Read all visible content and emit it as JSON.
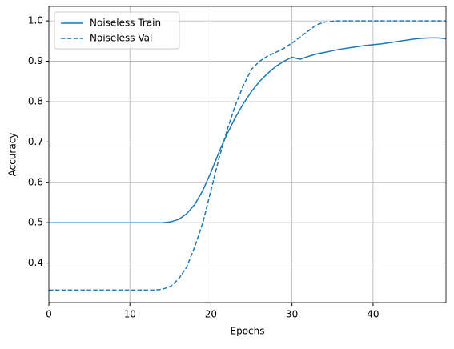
{
  "chart_data": {
    "type": "line",
    "x_label": "Epochs",
    "y_label": "Accuracy",
    "x": [
      0,
      1,
      2,
      3,
      4,
      5,
      6,
      7,
      8,
      9,
      10,
      11,
      12,
      13,
      14,
      15,
      16,
      17,
      18,
      19,
      20,
      21,
      22,
      23,
      24,
      25,
      26,
      27,
      28,
      29,
      30,
      31,
      32,
      33,
      34,
      35,
      36,
      37,
      38,
      39,
      40,
      41,
      42,
      43,
      44,
      45,
      46,
      47,
      48,
      49
    ],
    "series": [
      {
        "name": "Noiseless Train",
        "color": "#1f77b4",
        "linestyle": "solid",
        "values": [
          0.5,
          0.5,
          0.5,
          0.5,
          0.5,
          0.5,
          0.5,
          0.5,
          0.5,
          0.5,
          0.5,
          0.5,
          0.5,
          0.5,
          0.5,
          0.502,
          0.508,
          0.522,
          0.545,
          0.58,
          0.625,
          0.675,
          0.72,
          0.76,
          0.795,
          0.825,
          0.85,
          0.87,
          0.887,
          0.9,
          0.91,
          0.905,
          0.912,
          0.918,
          0.922,
          0.926,
          0.93,
          0.933,
          0.936,
          0.939,
          0.941,
          0.943,
          0.946,
          0.949,
          0.952,
          0.955,
          0.957,
          0.958,
          0.958,
          0.956
        ]
      },
      {
        "name": "Noiseless Val",
        "color": "#1f77b4",
        "linestyle": "dashed",
        "values": [
          0.333,
          0.333,
          0.333,
          0.333,
          0.333,
          0.333,
          0.333,
          0.333,
          0.333,
          0.333,
          0.333,
          0.333,
          0.333,
          0.333,
          0.335,
          0.342,
          0.36,
          0.39,
          0.44,
          0.5,
          0.58,
          0.66,
          0.73,
          0.79,
          0.84,
          0.88,
          0.9,
          0.913,
          0.922,
          0.932,
          0.945,
          0.96,
          0.975,
          0.99,
          0.997,
          0.999,
          1,
          1,
          1,
          1,
          1,
          1,
          1,
          1,
          1,
          1,
          1,
          1,
          1,
          1
        ]
      }
    ],
    "xlim": [
      0,
      49
    ],
    "ylim": [
      0.302,
      1.036
    ],
    "xticks": [
      0,
      10,
      20,
      30,
      40
    ],
    "yticks": [
      0.4,
      0.5,
      0.6,
      0.7,
      0.8,
      0.9,
      {
        "value": 1,
        "label": "1.0"
      }
    ],
    "grid": true,
    "legend": "upper-left"
  }
}
